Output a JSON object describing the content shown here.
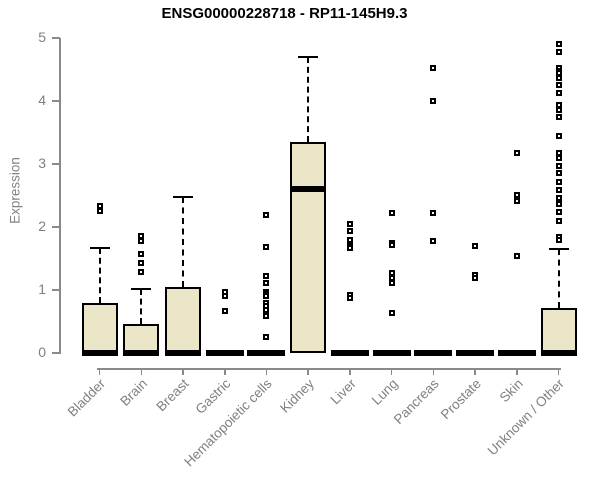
{
  "chart_data": {
    "type": "boxplot",
    "title": "ENSG00000228718 - RP11-145H9.3",
    "ylabel": "Expression",
    "xlabel": "",
    "ylim": [
      0,
      5
    ],
    "yticks": [
      0,
      1,
      2,
      3,
      4,
      5
    ],
    "grid": false,
    "legend": "none",
    "colors": {
      "box_fill": "#ECE6C9",
      "box_border": "#000000",
      "median": "#000000",
      "whisker": "#000000",
      "outlier_fill": "#ffffff",
      "axis_line": "#8a8a8a",
      "tick_label": "#808080",
      "title": "#000000",
      "background": "#ffffff"
    },
    "categories": [
      "Bladder",
      "Brain",
      "Breast",
      "Gastric",
      "Hematopoietic cells",
      "Kidney",
      "Liver",
      "Lung",
      "Pancreas",
      "Prostate",
      "Skin",
      "Unknown / Other"
    ],
    "series": [
      {
        "label": "Bladder",
        "q1": 0,
        "median": 0,
        "q3": 0.79,
        "whisker_low": 0,
        "whisker_high": 1.66,
        "outliers": [
          2.33,
          2.25
        ]
      },
      {
        "label": "Brain",
        "q1": 0,
        "median": 0,
        "q3": 0.46,
        "whisker_low": 0,
        "whisker_high": 1.01,
        "outliers": [
          1.86,
          1.77,
          1.57,
          1.43,
          1.28
        ]
      },
      {
        "label": "Breast",
        "q1": 0,
        "median": 0,
        "q3": 1.05,
        "whisker_low": 0,
        "whisker_high": 2.48,
        "outliers": []
      },
      {
        "label": "Gastric",
        "q1": 0,
        "median": 0,
        "q3": 0,
        "whisker_low": 0,
        "whisker_high": 0,
        "outliers": [
          0.97,
          0.9,
          0.66
        ]
      },
      {
        "label": "Hematopoietic cells",
        "q1": 0,
        "median": 0,
        "q3": 0,
        "whisker_low": 0,
        "whisker_high": 0,
        "outliers": [
          2.19,
          1.69,
          1.23,
          1.11,
          0.97,
          0.93,
          0.9,
          0.8,
          0.74,
          0.68,
          0.59,
          0.26
        ]
      },
      {
        "label": "Kidney",
        "q1": 0,
        "median": 2.6,
        "q3": 3.35,
        "whisker_low": 0,
        "whisker_high": 4.7,
        "outliers": []
      },
      {
        "label": "Liver",
        "q1": 0,
        "median": 0,
        "q3": 0,
        "whisker_low": 0,
        "whisker_high": 0,
        "outliers": [
          2.04,
          1.93,
          1.79,
          1.7,
          1.66,
          0.92,
          0.88
        ]
      },
      {
        "label": "Lung",
        "q1": 0,
        "median": 0,
        "q3": 0,
        "whisker_low": 0,
        "whisker_high": 0,
        "outliers": [
          2.22,
          1.75,
          1.71,
          1.27,
          1.19,
          1.11,
          0.63
        ]
      },
      {
        "label": "Pancreas",
        "q1": 0,
        "median": 0,
        "q3": 0,
        "whisker_low": 0,
        "whisker_high": 0,
        "outliers": [
          4.52,
          4.0,
          2.22,
          1.77
        ]
      },
      {
        "label": "Prostate",
        "q1": 0,
        "median": 0,
        "q3": 0,
        "whisker_low": 0,
        "whisker_high": 0,
        "outliers": [
          1.7,
          1.24,
          1.19
        ]
      },
      {
        "label": "Skin",
        "q1": 0,
        "median": 0,
        "q3": 0,
        "whisker_low": 0,
        "whisker_high": 0,
        "outliers": [
          3.17,
          2.51,
          2.41,
          1.54
        ]
      },
      {
        "label": "Unknown / Other",
        "q1": 0,
        "median": 0,
        "q3": 0.72,
        "whisker_low": 0,
        "whisker_high": 1.65,
        "outliers": [
          4.91,
          4.77,
          4.52,
          4.48,
          4.44,
          4.36,
          4.25,
          4.12,
          3.93,
          3.86,
          3.74,
          3.44,
          3.18,
          3.09,
          2.97,
          2.85,
          2.71,
          2.58,
          2.46,
          2.37,
          2.24,
          2.1,
          1.84,
          1.8
        ]
      }
    ]
  }
}
